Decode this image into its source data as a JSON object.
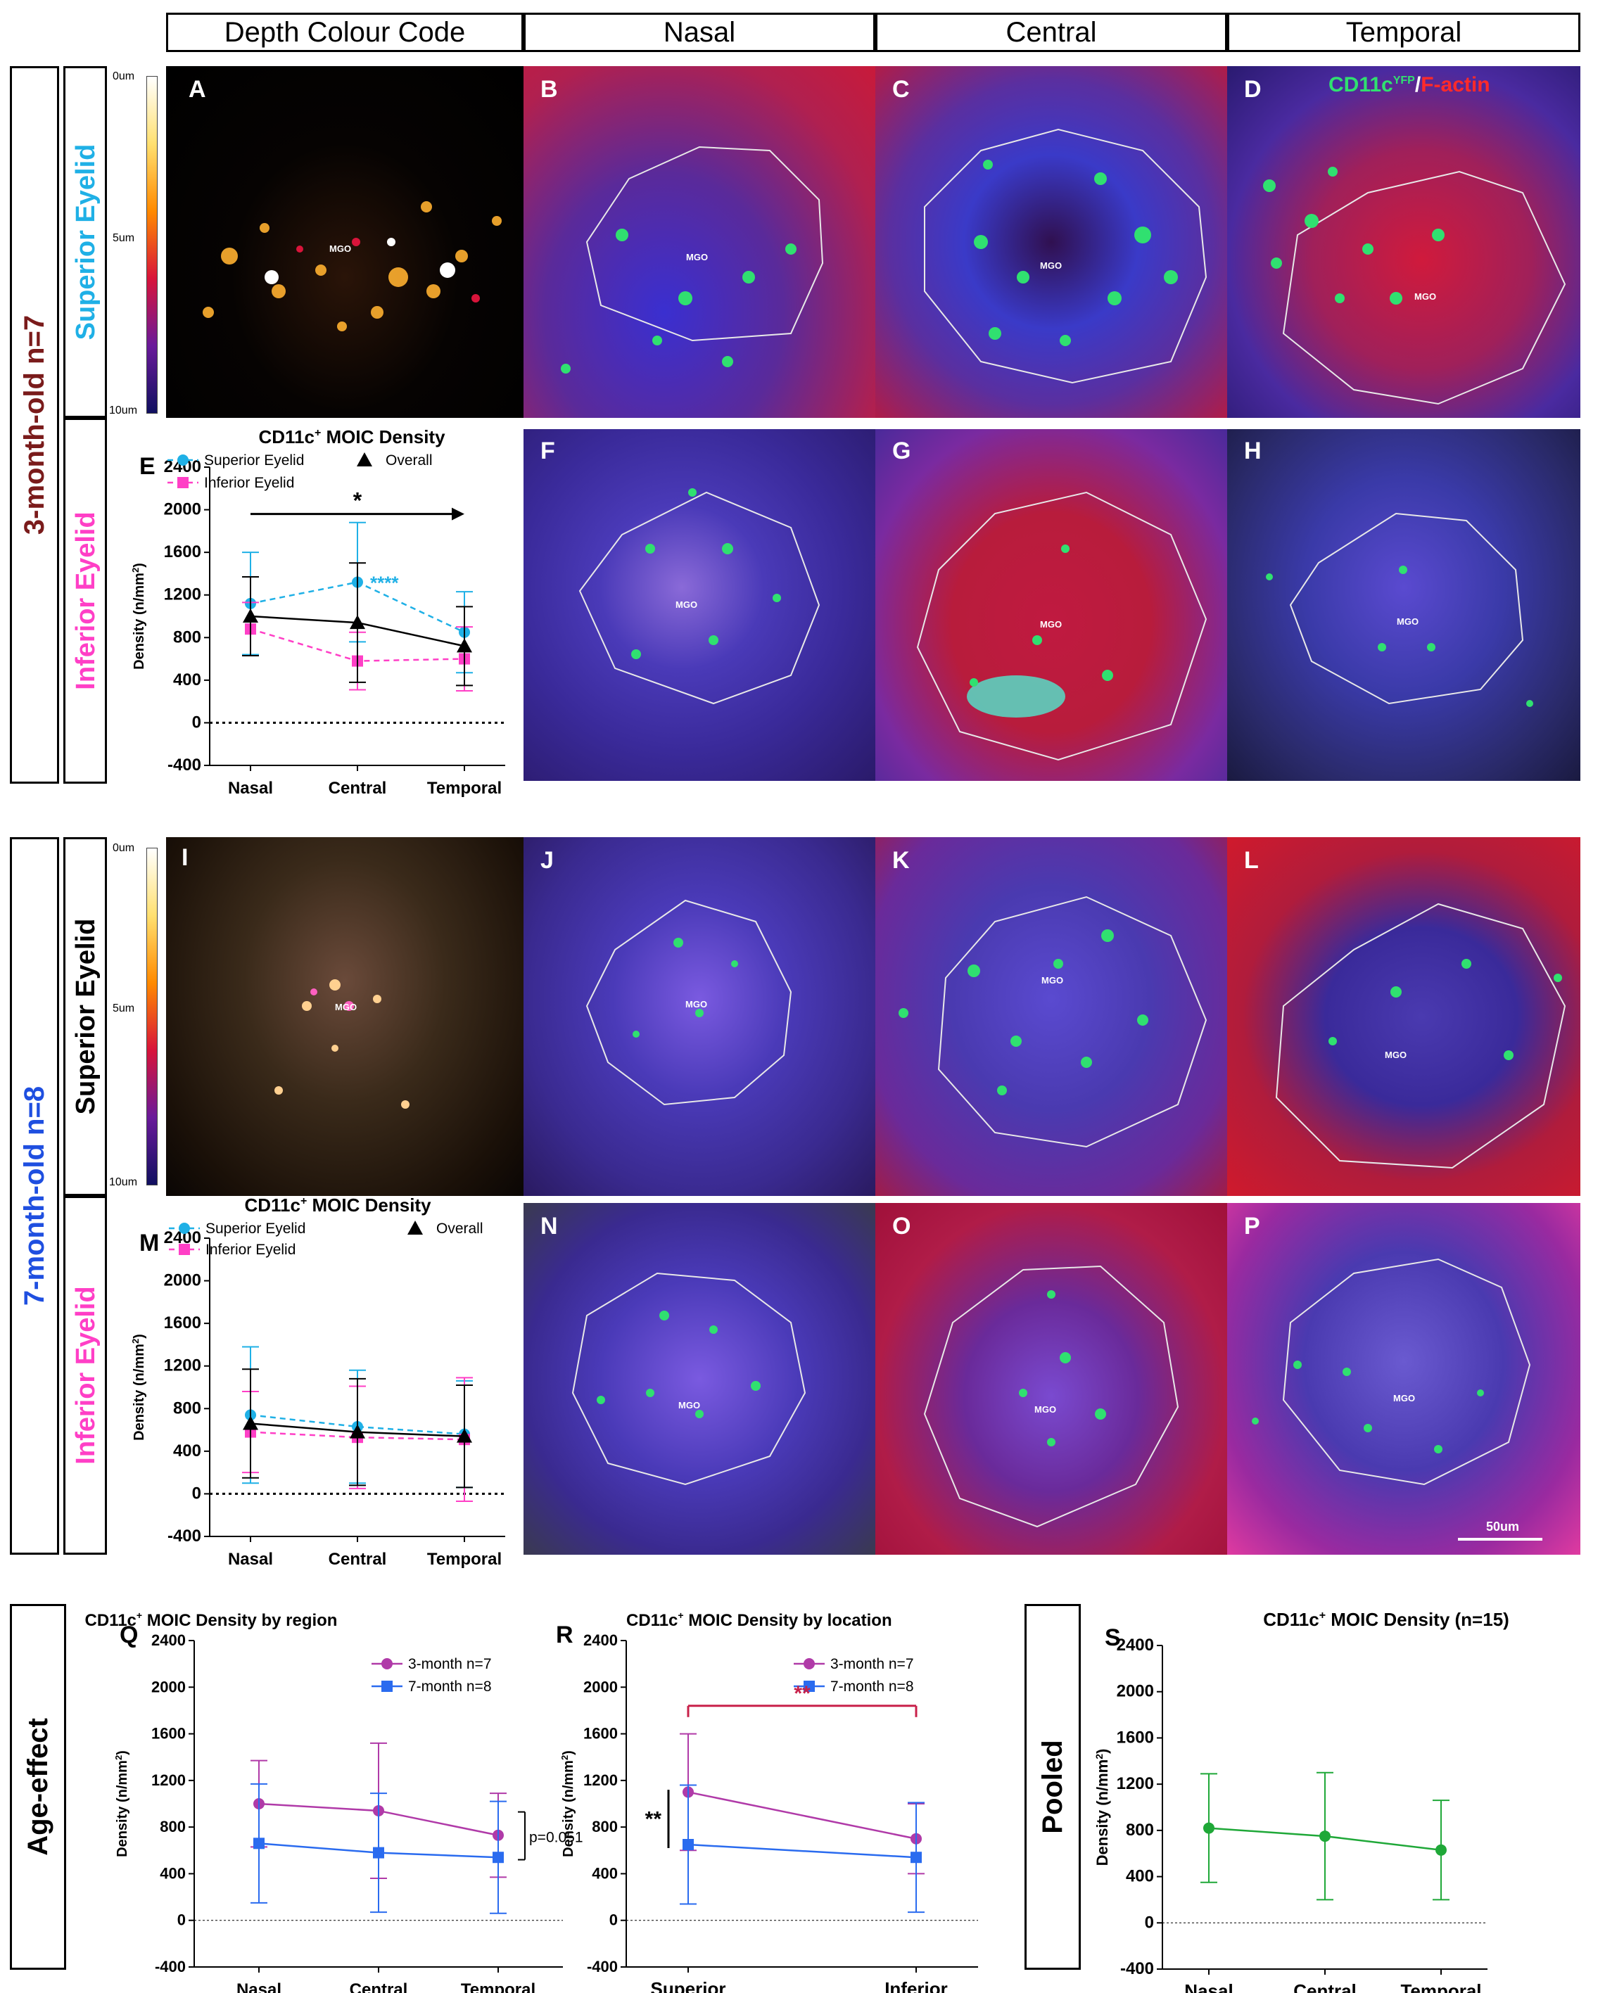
{
  "headers": {
    "depth": "Depth Colour Code",
    "nasal": "Nasal",
    "central": "Central",
    "temporal": "Temporal"
  },
  "rows": {
    "row1": {
      "label": "3-month-old n=7",
      "label_color": "#7a1b1b",
      "superior": "Superior Eyelid",
      "superior_color": "#1fb0e6",
      "inferior": "Inferior Eyelid",
      "inferior_color": "#ff3fc6"
    },
    "row2": {
      "label": "7-month-old n=8",
      "label_color": "#1f4fe0",
      "superior": "Superior Eyelid",
      "superior_color": "#000000",
      "inferior": "Inferior Eyelid",
      "inferior_color": "#ff3fc6"
    },
    "row3": {
      "label": "Age-effect",
      "pooled": "Pooled"
    }
  },
  "depth_scale": {
    "top": "0um",
    "mid": "5um",
    "bottom": "10um"
  },
  "panels": {
    "A": "A",
    "B": "B",
    "C": "C",
    "D": "D",
    "E": "E",
    "F": "F",
    "G": "G",
    "H": "H",
    "I": "I",
    "J": "J",
    "K": "K",
    "L": "L",
    "M": "M",
    "N": "N",
    "O": "O",
    "P": "P",
    "Q": "Q",
    "R": "R",
    "S": "S"
  },
  "mgo": "MGO",
  "stain_label": {
    "marker": "CD11c",
    "sup": "YFP",
    "sep": "/",
    "actin": "F-actin"
  },
  "scale_bar": "50um",
  "colors": {
    "superior": "#1fb0e6",
    "inferior": "#ff3fc6",
    "overall": "#000000",
    "m3": "#b03aa8",
    "m7": "#2a6bef",
    "pooled": "#1fa838",
    "star_red": "#c8214a"
  },
  "chart_data": [
    {
      "id": "E",
      "type": "line",
      "title": "CD11c+ MOIC Density",
      "ylabel": "Density (n/mm2)",
      "xlabel": "",
      "categories": [
        "Nasal",
        "Central",
        "Temporal"
      ],
      "ylim": [
        -400,
        2400
      ],
      "yticks": [
        -400,
        0,
        400,
        800,
        1200,
        1600,
        2000,
        2400
      ],
      "series": [
        {
          "name": "Superior Eyelid",
          "values": [
            1120,
            1320,
            850
          ],
          "err": [
            480,
            560,
            380
          ]
        },
        {
          "name": "Inferior Eyelid",
          "values": [
            880,
            580,
            600
          ],
          "err": [
            250,
            270,
            300
          ]
        },
        {
          "name": "Overall",
          "values": [
            1000,
            940,
            720
          ],
          "err": [
            370,
            560,
            370
          ]
        }
      ],
      "annotations": {
        "arrow_star": "*",
        "sig": "****"
      }
    },
    {
      "id": "M",
      "type": "line",
      "title": "CD11c+ MOIC Density",
      "ylabel": "Density (n/mm2)",
      "xlabel": "",
      "categories": [
        "Nasal",
        "Central",
        "Temporal"
      ],
      "ylim": [
        -400,
        2400
      ],
      "yticks": [
        -400,
        0,
        400,
        800,
        1200,
        1600,
        2000,
        2400
      ],
      "series": [
        {
          "name": "Superior Eyelid",
          "values": [
            740,
            630,
            560
          ],
          "err": [
            640,
            530,
            500
          ]
        },
        {
          "name": "Inferior Eyelid",
          "values": [
            580,
            530,
            510
          ],
          "err": [
            380,
            480,
            580
          ]
        },
        {
          "name": "Overall",
          "values": [
            660,
            580,
            540
          ],
          "err": [
            510,
            500,
            480
          ]
        }
      ]
    },
    {
      "id": "Q",
      "type": "line",
      "title": "CD11c+ MOIC Density by region",
      "ylabel": "Density (n/mm2)",
      "xlabel": "",
      "categories": [
        "Nasal",
        "Central",
        "Temporal"
      ],
      "ylim": [
        -400,
        2400
      ],
      "yticks": [
        -400,
        0,
        400,
        800,
        1200,
        1600,
        2000,
        2400
      ],
      "series": [
        {
          "name": "3-month n=7",
          "values": [
            1000,
            940,
            730
          ],
          "err": [
            370,
            580,
            360
          ]
        },
        {
          "name": "7-month n=8",
          "values": [
            660,
            580,
            540
          ],
          "err": [
            510,
            510,
            480
          ]
        }
      ],
      "annotations": {
        "pvalue": "p=0.051"
      }
    },
    {
      "id": "R",
      "type": "line",
      "title": "CD11c+ MOIC Density by location",
      "ylabel": "Density (n/mm2)",
      "xlabel": "",
      "categories": [
        "Superior",
        "Inferior"
      ],
      "ylim": [
        -400,
        2400
      ],
      "yticks": [
        -400,
        0,
        400,
        800,
        1200,
        1600,
        2000,
        2400
      ],
      "series": [
        {
          "name": "3-month n=7",
          "values": [
            1100,
            700
          ],
          "err": [
            500,
            300
          ]
        },
        {
          "name": "7-month n=8",
          "values": [
            650,
            540
          ],
          "err": [
            510,
            470
          ]
        }
      ],
      "annotations": {
        "red_star": "**",
        "black_star": "**"
      }
    },
    {
      "id": "S",
      "type": "line",
      "title": "CD11c+ MOIC Density (n=15)",
      "ylabel": "Density (n/mm2)",
      "xlabel": "",
      "categories": [
        "Nasal",
        "Central",
        "Temporal"
      ],
      "ylim": [
        -400,
        2400
      ],
      "yticks": [
        -400,
        0,
        400,
        800,
        1200,
        1600,
        2000,
        2400
      ],
      "series": [
        {
          "name": "",
          "values": [
            820,
            750,
            630
          ],
          "err": [
            470,
            550,
            430
          ]
        }
      ]
    }
  ]
}
